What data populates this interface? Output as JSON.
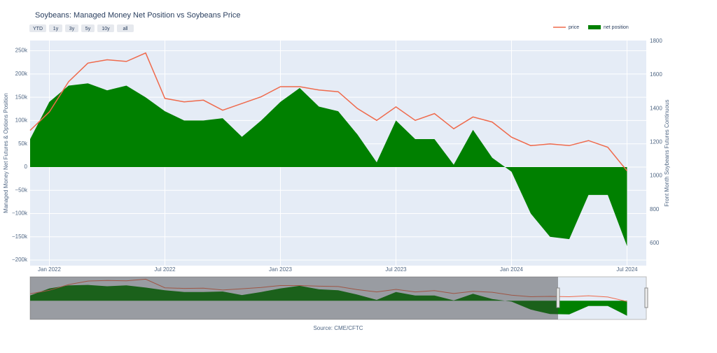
{
  "chart_data": {
    "type": "line-area",
    "title": "Soybeans: Managed Money Net Position vs Soybeans Price",
    "buttons": [
      "YTD",
      "1y",
      "3y",
      "5y",
      "10y",
      "all"
    ],
    "source": "Source: CME/CFTC",
    "y_label": "Managed Money Net Futures & Options Position",
    "y2_label": "Front Month Soybeans Futures Continuous",
    "legend_position": "top-right",
    "grid": true,
    "x": [
      "2021-12",
      "2022-01",
      "2022-02",
      "2022-03",
      "2022-04",
      "2022-05",
      "2022-06",
      "2022-07",
      "2022-08",
      "2022-09",
      "2022-10",
      "2022-11",
      "2022-12",
      "2023-01",
      "2023-02",
      "2023-03",
      "2023-04",
      "2023-05",
      "2023-06",
      "2023-07",
      "2023-08",
      "2023-09",
      "2023-10",
      "2023-11",
      "2023-12",
      "2024-01",
      "2024-02",
      "2024-03",
      "2024-04",
      "2024-05",
      "2024-06",
      "2024-07"
    ],
    "xlim": [
      "2021-12",
      "2024-08"
    ],
    "xticks": [
      {
        "value": "2022-01",
        "label": "Jan 2022"
      },
      {
        "value": "2022-07",
        "label": "Jul 2022"
      },
      {
        "value": "2023-01",
        "label": "Jan 2023"
      },
      {
        "value": "2023-07",
        "label": "Jul 2023"
      },
      {
        "value": "2024-01",
        "label": "Jan 2024"
      },
      {
        "value": "2024-07",
        "label": "Jul 2024"
      }
    ],
    "ylim": [
      -212000,
      272000
    ],
    "yticks": [
      {
        "value": -200000,
        "label": "−200k"
      },
      {
        "value": -150000,
        "label": "−150k"
      },
      {
        "value": -100000,
        "label": "−100k"
      },
      {
        "value": -50000,
        "label": "−50k"
      },
      0,
      {
        "value": 50000,
        "label": "50k"
      },
      {
        "value": 100000,
        "label": "100k"
      },
      {
        "value": 150000,
        "label": "150k"
      },
      {
        "value": 200000,
        "label": "200k"
      },
      {
        "value": 250000,
        "label": "250k"
      }
    ],
    "y2lim": [
      467,
      1804
    ],
    "y2ticks": [
      600,
      800,
      1000,
      1200,
      1400,
      1600,
      1800
    ],
    "series": [
      {
        "name": "price",
        "color": "#ef6a4c",
        "axis": "y2",
        "kind": "line",
        "values": [
          1270,
          1380,
          1560,
          1670,
          1690,
          1680,
          1730,
          1460,
          1440,
          1450,
          1390,
          1430,
          1470,
          1530,
          1530,
          1510,
          1500,
          1400,
          1330,
          1410,
          1330,
          1370,
          1280,
          1350,
          1320,
          1230,
          1180,
          1190,
          1180,
          1210,
          1170,
          1030
        ]
      },
      {
        "name": "net position",
        "color": "#008000",
        "kind": "area",
        "values": [
          60000,
          140000,
          175000,
          180000,
          165000,
          175000,
          150000,
          120000,
          100000,
          100000,
          105000,
          65000,
          100000,
          140000,
          170000,
          130000,
          120000,
          70000,
          10000,
          100000,
          60000,
          60000,
          5000,
          80000,
          20000,
          -10000,
          -100000,
          -150000,
          -155000,
          -60000,
          -60000,
          -170000
        ]
      }
    ]
  }
}
